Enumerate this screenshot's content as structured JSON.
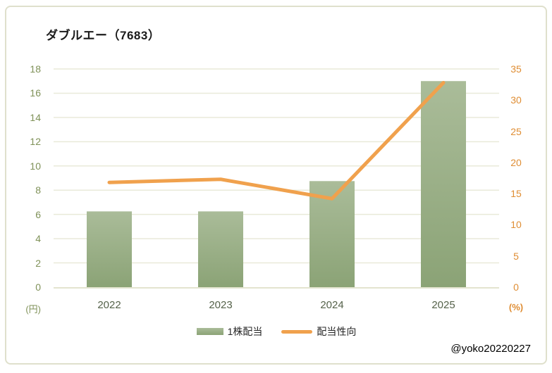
{
  "title": "ダブルエー（7683）",
  "watermark": "@yoko20220227",
  "colors": {
    "bar_top": "#aabc99",
    "bar_bottom": "#8ba376",
    "line": "#f0a14d",
    "grid": "#e9ead9",
    "axis_line": "#e3e4cf",
    "left_tick": "#7f9158",
    "right_tick": "#df8d33",
    "x_label": "#55624a",
    "frame": "#dfe0cc",
    "title_text": "#1a1a1a"
  },
  "chart_data": {
    "type": "bar+line",
    "title": "ダブルエー（7683）",
    "categories": [
      "2022",
      "2023",
      "2024",
      "2025"
    ],
    "series": [
      {
        "name": "1株配当",
        "chart": "bar",
        "axis": "left",
        "values": [
          6.25,
          6.25,
          8.75,
          17
        ]
      },
      {
        "name": "配当性向",
        "chart": "line",
        "axis": "right",
        "values": [
          16.8,
          17.3,
          14.2,
          32.8
        ]
      }
    ],
    "left_axis": {
      "unit": "(円)",
      "min": 0,
      "max": 18,
      "step": 2,
      "ticks": [
        0,
        2,
        4,
        6,
        8,
        10,
        12,
        14,
        16,
        18
      ]
    },
    "right_axis": {
      "unit": "(%)",
      "min": 0,
      "max": 35,
      "step": 5,
      "ticks": [
        0,
        5,
        10,
        15,
        20,
        25,
        30,
        35
      ]
    },
    "grid": true,
    "legend_position": "bottom"
  }
}
